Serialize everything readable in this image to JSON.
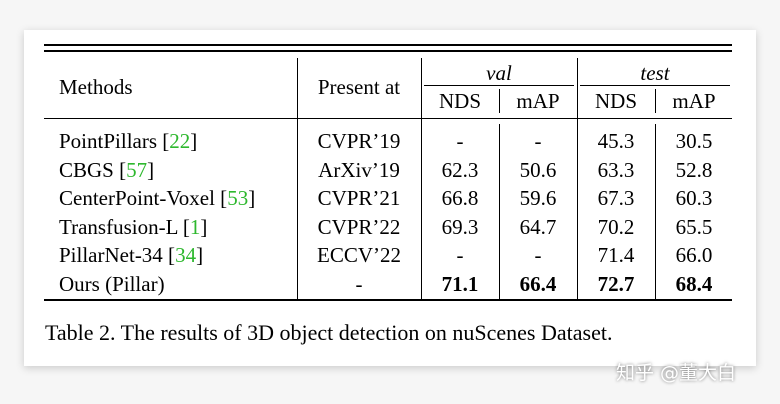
{
  "table": {
    "header": {
      "methods": "Methods",
      "present_at": "Present at",
      "val": "val",
      "test": "test",
      "val_nds": "NDS",
      "val_map": "mAP",
      "test_nds": "NDS",
      "test_map": "mAP"
    },
    "rows": [
      {
        "method": "PointPillars [",
        "ref": "22",
        "close": "]",
        "venue": "CVPR’19",
        "val_nds": "-",
        "val_map": "-",
        "test_nds": "45.3",
        "test_map": "30.5"
      },
      {
        "method": "CBGS [",
        "ref": "57",
        "close": "]",
        "venue": "ArXiv’19",
        "val_nds": "62.3",
        "val_map": "50.6",
        "test_nds": "63.3",
        "test_map": "52.8"
      },
      {
        "method": "CenterPoint-Voxel [",
        "ref": "53",
        "close": "]",
        "venue": "CVPR’21",
        "val_nds": "66.8",
        "val_map": "59.6",
        "test_nds": "67.3",
        "test_map": "60.3"
      },
      {
        "method": "Transfusion-L [",
        "ref": "1",
        "close": "]",
        "venue": "CVPR’22",
        "val_nds": "69.3",
        "val_map": "64.7",
        "test_nds": "70.2",
        "test_map": "65.5"
      },
      {
        "method": "PillarNet-34 [",
        "ref": "34",
        "close": "]",
        "venue": "ECCV’22",
        "val_nds": "-",
        "val_map": "-",
        "test_nds": "71.4",
        "test_map": "66.0"
      },
      {
        "method": "Ours (Pillar)",
        "ref": "",
        "close": "",
        "venue": "-",
        "val_nds": "71.1",
        "val_map": "66.4",
        "test_nds": "72.7",
        "test_map": "68.4"
      }
    ]
  },
  "caption": "Table 2. The results of 3D object detection on nuScenes Dataset.",
  "watermark": "知乎 @董大白",
  "colors": {
    "citation": "#2eb82e"
  }
}
